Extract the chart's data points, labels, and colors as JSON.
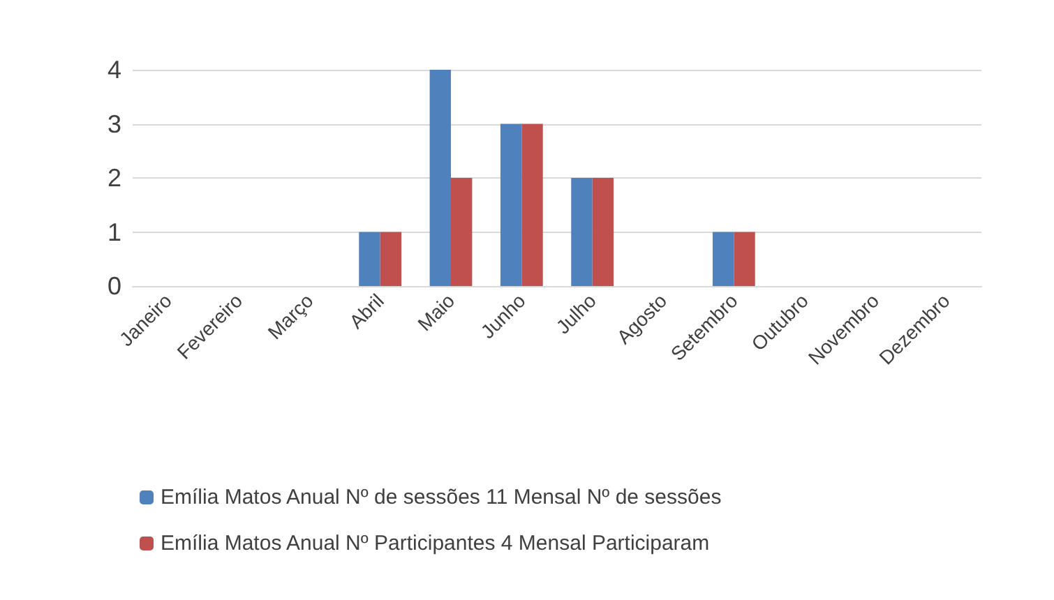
{
  "chart_data": {
    "type": "bar",
    "categories": [
      "Janeiro",
      "Fevereiro",
      "Março",
      "Abril",
      "Maio",
      "Junho",
      "Julho",
      "Agosto",
      "Setembro",
      "Outubro",
      "Novembro",
      "Dezembro"
    ],
    "series": [
      {
        "name": "Emília Matos Anual Nº de sessões 11 Mensal Nº de sessões",
        "color": "#4f81bd",
        "values": [
          0,
          0,
          0,
          1,
          4,
          3,
          2,
          0,
          1,
          0,
          0,
          0
        ]
      },
      {
        "name": "Emília Matos Anual Nº Participantes 4 Mensal Participaram",
        "color": "#c0504d",
        "values": [
          0,
          0,
          0,
          1,
          2,
          3,
          2,
          0,
          1,
          0,
          0,
          0
        ]
      }
    ],
    "ylim": [
      0,
      4
    ],
    "yticks": [
      0,
      1,
      2,
      3,
      4
    ],
    "grid": "y",
    "legend": "bottom"
  }
}
